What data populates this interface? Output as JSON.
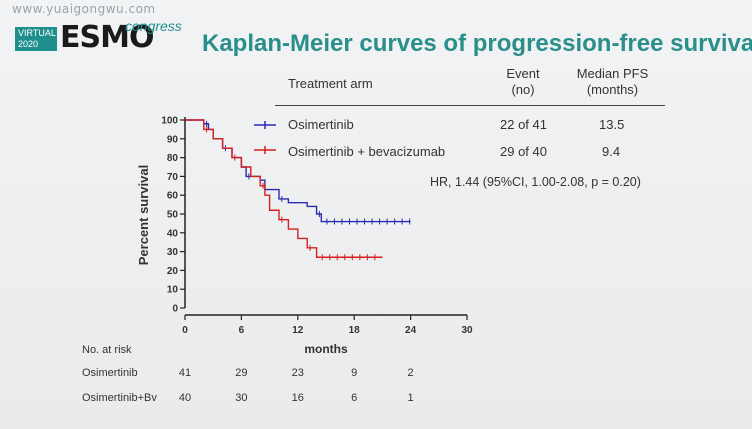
{
  "watermark": "www.yuaigongwu.com",
  "logo": {
    "virtual": "VIRTUAL",
    "year": "2020",
    "brand": "ESMO",
    "congress": "congress"
  },
  "title": "Kaplan-Meier curves of progression-free survival",
  "table": {
    "headers": {
      "arm": "Treatment arm",
      "event": "Event",
      "event_sub": "(no)",
      "median": "Median PFS",
      "median_sub": "(months)"
    },
    "rows": [
      {
        "arm": "Osimertinib",
        "event": "22 of 41",
        "median": "13.5",
        "color": "#2b2bb0"
      },
      {
        "arm": "Osimertinib + bevacizumab",
        "event": "29 of 40",
        "median": "9.4",
        "color": "#d42020"
      }
    ],
    "hr": "HR, 1.44 (95%CI, 1.00-2.08, p = 0.20)"
  },
  "chart_data": {
    "type": "line",
    "step": true,
    "ylabel": "Percent survival",
    "xlabel": "months",
    "xlim": [
      0,
      30
    ],
    "ylim": [
      0,
      100
    ],
    "xticks": [
      0,
      6,
      12,
      18,
      24,
      30
    ],
    "yticks": [
      0,
      10,
      20,
      30,
      40,
      50,
      60,
      70,
      80,
      90,
      100
    ],
    "series": [
      {
        "name": "Osimertinib",
        "color": "#2b2bb0",
        "points": [
          [
            0,
            100
          ],
          [
            1.5,
            100
          ],
          [
            2,
            98
          ],
          [
            2.5,
            95
          ],
          [
            3,
            90
          ],
          [
            4,
            85
          ],
          [
            5,
            80
          ],
          [
            6,
            75
          ],
          [
            6.5,
            70
          ],
          [
            8,
            68
          ],
          [
            8.5,
            63
          ],
          [
            10,
            58
          ],
          [
            11,
            56
          ],
          [
            13,
            54
          ],
          [
            14,
            50
          ],
          [
            14.5,
            46
          ],
          [
            24,
            46
          ]
        ]
      },
      {
        "name": "Osimertinib + bevacizumab",
        "color": "#d42020",
        "points": [
          [
            0,
            100
          ],
          [
            1,
            100
          ],
          [
            2,
            95
          ],
          [
            3,
            90
          ],
          [
            4,
            85
          ],
          [
            5,
            80
          ],
          [
            6,
            75
          ],
          [
            7,
            70
          ],
          [
            8,
            65
          ],
          [
            8.5,
            60
          ],
          [
            9,
            52
          ],
          [
            10,
            47
          ],
          [
            11,
            42
          ],
          [
            12,
            37
          ],
          [
            13,
            32
          ],
          [
            14,
            27
          ],
          [
            21,
            27
          ]
        ]
      }
    ]
  },
  "risk_table": {
    "label": "No. at risk",
    "rows": [
      {
        "name": "Osimertinib",
        "values": [
          "41",
          "29",
          "23",
          "9",
          "2"
        ]
      },
      {
        "name": "Osimertinib+Bv",
        "values": [
          "40",
          "30",
          "16",
          "6",
          "1"
        ]
      }
    ]
  }
}
